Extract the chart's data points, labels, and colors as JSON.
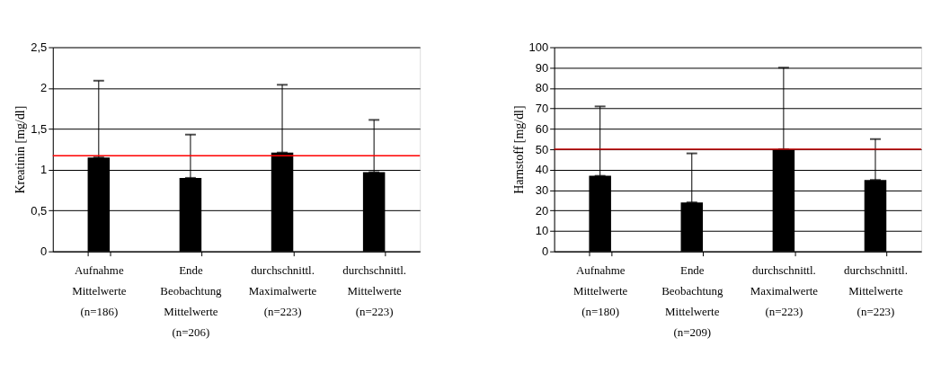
{
  "chart_data": [
    {
      "type": "bar",
      "ylabel": "Kreatinin [mg/dl]",
      "categories": [
        "Aufnahme\nMittelwerte\n(n=186)",
        "Ende\nBeobachtung\nMittelwerte\n(n=206)",
        "durchschnittl.\nMaximalwerte\n(n=223)",
        "durchschnittl.\nMittelwerte\n(n=223)"
      ],
      "values": [
        1.15,
        0.9,
        1.21,
        0.97
      ],
      "color": "#000000",
      "errors": [
        [
          1.15,
          2.09
        ],
        [
          0.9,
          1.43
        ],
        [
          1.21,
          2.04
        ],
        [
          0.97,
          1.61
        ]
      ],
      "ylim": [
        0,
        2.5
      ],
      "yticks": [
        0,
        {
          "value": 0.5,
          "label": "0,5"
        },
        1,
        {
          "value": 1.5,
          "label": "1,5"
        },
        2,
        {
          "value": 2.5,
          "label": "2,5"
        }
      ],
      "ref_lines": [
        {
          "axis": "y",
          "value": 1.17,
          "color": "#ff0000"
        }
      ],
      "grid": "y"
    },
    {
      "type": "bar",
      "ylabel": "Harnstoff [mg/dl]",
      "categories": [
        "Aufnahme\nMittelwerte\n(n=180)",
        "Ende\nBeobachtung\nMittelwerte\n(n=209)",
        "durchschnittl.\nMaximalwerte\n(n=223)",
        "durchschnittl.\nMittelwerte\n(n=223)"
      ],
      "values": [
        37,
        24,
        50,
        35
      ],
      "color": "#000000",
      "errors": [
        [
          37,
          71
        ],
        [
          24,
          48
        ],
        [
          50,
          90
        ],
        [
          35,
          55
        ]
      ],
      "ylim": [
        0,
        100
      ],
      "yticks": [
        0,
        10,
        20,
        30,
        40,
        50,
        60,
        70,
        80,
        90,
        100
      ],
      "ref_lines": [
        {
          "axis": "y",
          "value": 50,
          "color": "#c00000"
        }
      ],
      "grid": "y"
    }
  ]
}
